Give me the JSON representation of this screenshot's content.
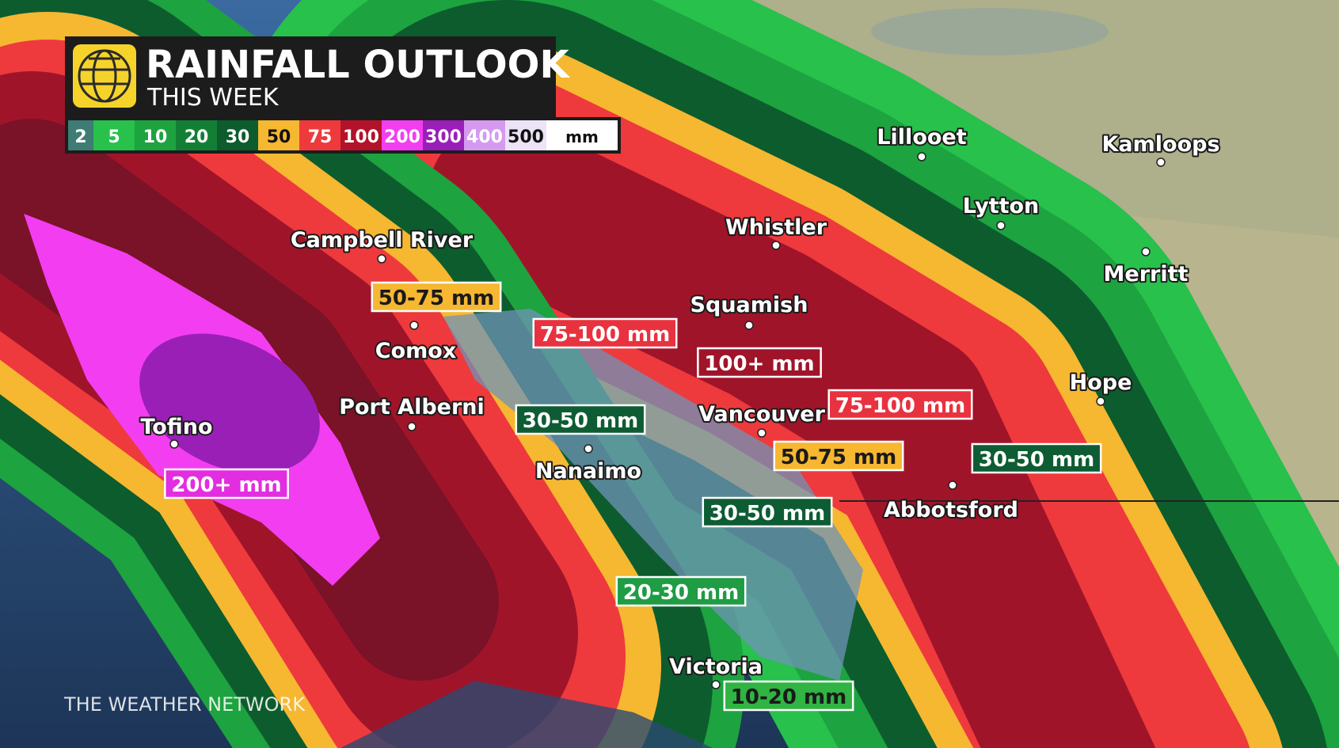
{
  "header": {
    "title": "RAINFALL OUTLOOK",
    "subtitle": "THIS WEEK"
  },
  "legend": {
    "items": [
      {
        "label": 2,
        "color": "#3e7c74"
      },
      {
        "label": 5,
        "color": "#27c14c"
      },
      {
        "label": 10,
        "color": "#1da33f"
      },
      {
        "label": 20,
        "color": "#137f35"
      },
      {
        "label": 30,
        "color": "#0d5c2e"
      },
      {
        "label": 50,
        "color": "#f6b731"
      },
      {
        "label": 75,
        "color": "#ee3a3c"
      },
      {
        "label": 100,
        "color": "#b3122a"
      },
      {
        "label": 200,
        "color": "#f23ef0"
      },
      {
        "label": 300,
        "color": "#9a1fb7"
      },
      {
        "label": 400,
        "color": "#d59af0"
      },
      {
        "label": 500,
        "color": "#ece4f6"
      }
    ],
    "unit": "mm"
  },
  "cities": [
    "Lillooet",
    "Kamloops",
    "Lytton",
    "Whistler",
    "Merritt",
    "Campbell River",
    "Squamish",
    "Comox",
    "Hope",
    "Port Alberni",
    "Tofino",
    "Vancouver",
    "Nanaimo",
    "Abbotsford",
    "Victoria"
  ],
  "rainfall_labels": [
    {
      "text": "50-75 mm",
      "color": "#f6b731"
    },
    {
      "text": "75-100 mm",
      "color": "#e8323f"
    },
    {
      "text": "100+ mm",
      "color": "#a0142a"
    },
    {
      "text": "30-50 mm",
      "color": "#0e5c33"
    },
    {
      "text": "75-100 mm",
      "color": "#e8323f"
    },
    {
      "text": "50-75 mm",
      "color": "#f6b731"
    },
    {
      "text": "30-50 mm",
      "color": "#0e5c33"
    },
    {
      "text": "200+ mm",
      "color": "#e22de0"
    },
    {
      "text": "30-50 mm",
      "color": "#0e5c33"
    },
    {
      "text": "20-30 mm",
      "color": "#1f9c44"
    },
    {
      "text": "10-20 mm",
      "color": "#30b443"
    }
  ],
  "footer": "THE WEATHER NETWORK"
}
